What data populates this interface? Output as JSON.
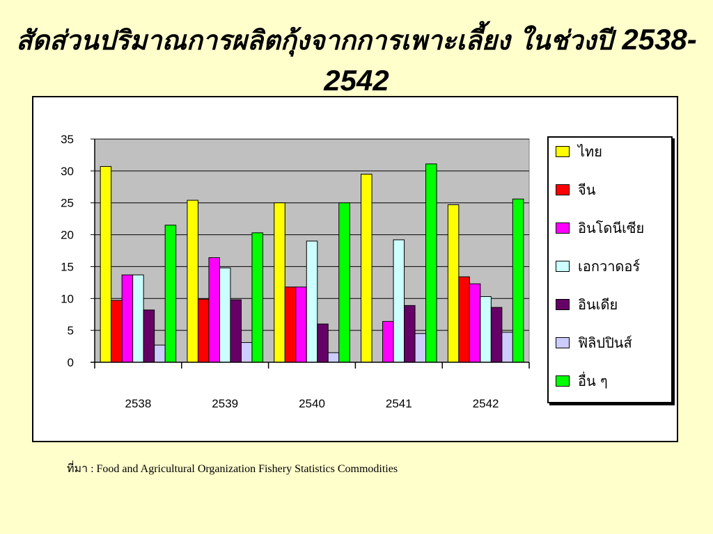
{
  "slide": {
    "title_text": "สัดส่วนปริมาณการผลิตกุ้งจากการเพาะเลี้ยง ในช่วงปี ",
    "title_years_a": "2538-",
    "title_years_b": "2542",
    "source": "ที่มา :  Food and Agricultural Organization Fishery Statistics Commodities"
  },
  "chart_data": {
    "type": "bar",
    "title": "",
    "xlabel": "",
    "ylabel": "",
    "categories": [
      "2538",
      "2539",
      "2540",
      "2541",
      "2542"
    ],
    "ylim": [
      0,
      35
    ],
    "yticks": [
      0,
      5,
      10,
      15,
      20,
      25,
      30,
      35
    ],
    "grid": true,
    "legend_position": "right",
    "plot_background": "#c0c0c0",
    "series": [
      {
        "name": "ไทย",
        "color": "#ffff00",
        "values": [
          30.7,
          25.4,
          25.0,
          29.5,
          24.7
        ]
      },
      {
        "name": "จีน",
        "color": "#ff0000",
        "values": [
          9.7,
          9.9,
          11.8,
          0,
          13.4
        ]
      },
      {
        "name": "อินโดนีเซีย",
        "color": "#ff00ff",
        "values": [
          13.7,
          16.4,
          11.8,
          6.4,
          12.3
        ]
      },
      {
        "name": "เอกวาดอร์",
        "color": "#ccffff",
        "values": [
          13.7,
          14.8,
          19.0,
          19.2,
          10.3
        ]
      },
      {
        "name": "อินเดีย",
        "color": "#660066",
        "values": [
          8.2,
          9.8,
          6.0,
          8.9,
          8.6
        ]
      },
      {
        "name": "ฟิลิปปินส์",
        "color": "#ccccff",
        "values": [
          2.7,
          3.1,
          1.5,
          4.5,
          4.7
        ]
      },
      {
        "name": "อื่น ๆ",
        "color": "#00ff00",
        "values": [
          21.5,
          20.3,
          25.0,
          31.1,
          25.6
        ]
      }
    ]
  }
}
